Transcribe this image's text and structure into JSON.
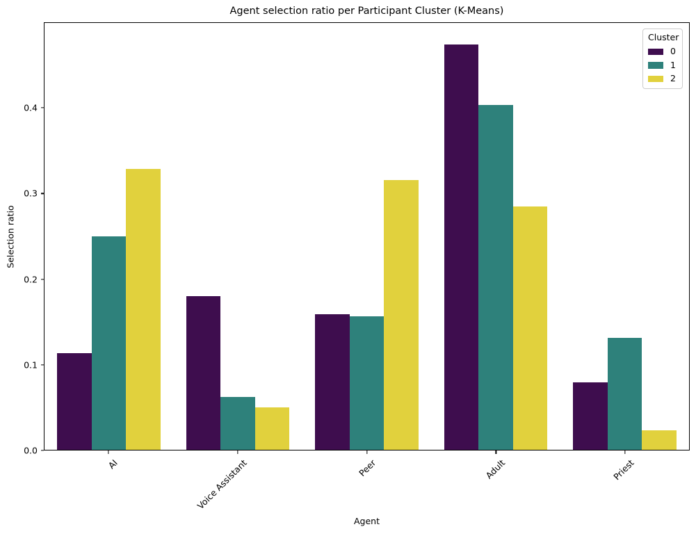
{
  "figure": {
    "title": "Agent selection ratio per Participant Cluster (K-Means)",
    "xlabel": "Agent",
    "ylabel": "Selection ratio"
  },
  "legend": {
    "title": "Cluster",
    "entries": [
      {
        "label": "0",
        "color": "#3e0d4e"
      },
      {
        "label": "1",
        "color": "#2e817b"
      },
      {
        "label": "2",
        "color": "#e1d13d"
      }
    ]
  },
  "chart_data": {
    "type": "bar",
    "title": "Agent selection ratio per Participant Cluster (K-Means)",
    "xlabel": "Agent",
    "ylabel": "Selection ratio",
    "categories": [
      "AI",
      "Voice Assistant",
      "Peer",
      "Adult",
      "Priest"
    ],
    "series": [
      {
        "name": "0",
        "color": "#3e0d4e",
        "values": [
          0.113,
          0.18,
          0.159,
          0.475,
          0.079
        ]
      },
      {
        "name": "1",
        "color": "#2e817b",
        "values": [
          0.25,
          0.062,
          0.156,
          0.404,
          0.131
        ]
      },
      {
        "name": "2",
        "color": "#e1d13d",
        "values": [
          0.329,
          0.05,
          0.316,
          0.285,
          0.023
        ]
      }
    ],
    "ylim": [
      0,
      0.5
    ],
    "yticks": [
      "0.0",
      "0.1",
      "0.2",
      "0.3",
      "0.4"
    ],
    "grid": false,
    "legend_title": "Cluster",
    "legend_position": "upper right"
  }
}
